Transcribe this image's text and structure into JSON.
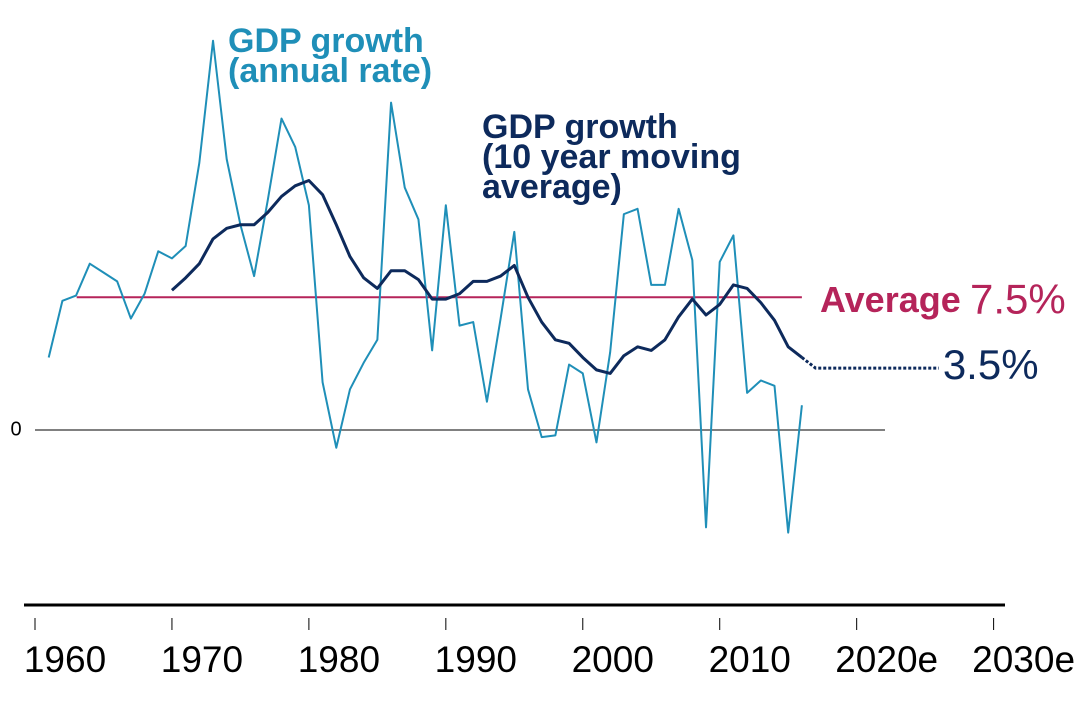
{
  "chart_data": {
    "type": "line",
    "x_annual": [
      1961,
      1962,
      1963,
      1964,
      1965,
      1966,
      1967,
      1968,
      1969,
      1970,
      1971,
      1972,
      1973,
      1974,
      1975,
      1976,
      1977,
      1978,
      1979,
      1980,
      1981,
      1982,
      1983,
      1984,
      1985,
      1986,
      1987,
      1988,
      1989,
      1990,
      1991,
      1992,
      1993,
      1994,
      1995,
      1996,
      1997,
      1998,
      1999,
      2000,
      2001,
      2002,
      2003,
      2004,
      2005,
      2006,
      2007,
      2008,
      2009,
      2010,
      2011,
      2012,
      2013,
      2014,
      2015,
      2016
    ],
    "x_moving": [
      1970,
      1971,
      1972,
      1973,
      1974,
      1975,
      1976,
      1977,
      1978,
      1979,
      1980,
      1981,
      1982,
      1983,
      1984,
      1985,
      1986,
      1987,
      1988,
      1989,
      1990,
      1991,
      1992,
      1993,
      1994,
      1995,
      1996,
      1997,
      1998,
      1999,
      2000,
      2001,
      2002,
      2003,
      2004,
      2005,
      2006,
      2007,
      2008,
      2009,
      2010,
      2011,
      2012,
      2013,
      2014,
      2015,
      2016
    ],
    "series": [
      {
        "name": "GDP growth\n(annual rate)",
        "color": "#1f8fb8",
        "values": [
          4.1,
          7.3,
          7.6,
          9.4,
          8.9,
          8.4,
          6.3,
          7.7,
          10.1,
          9.7,
          10.4,
          15.1,
          22.0,
          15.3,
          11.6,
          8.7,
          13.0,
          17.6,
          16.0,
          12.7,
          2.7,
          -1.0,
          2.3,
          3.8,
          5.1,
          18.5,
          13.7,
          11.9,
          4.5,
          12.7,
          5.9,
          6.1,
          1.6,
          6.3,
          11.2,
          2.3,
          -0.4,
          -0.3,
          3.7,
          3.2,
          -0.7,
          4.4,
          12.2,
          12.5,
          8.2,
          8.2,
          12.5,
          9.6,
          -5.5,
          9.5,
          11.0,
          2.1,
          2.8,
          2.5,
          -5.8,
          1.4
        ]
      },
      {
        "name": "GDP growth\n(10 year moving\naverage)",
        "color": "#0d2a5c",
        "values": [
          7.9,
          8.6,
          9.4,
          10.8,
          11.4,
          11.6,
          11.6,
          12.3,
          13.2,
          13.8,
          14.1,
          13.3,
          11.6,
          9.8,
          8.6,
          8.0,
          9.0,
          9.0,
          8.5,
          7.4,
          7.4,
          7.7,
          8.4,
          8.4,
          8.7,
          9.3,
          7.5,
          6.1,
          5.1,
          4.9,
          4.1,
          3.4,
          3.2,
          4.2,
          4.7,
          4.5,
          5.1,
          6.4,
          7.4,
          6.5,
          7.1,
          8.2,
          8.0,
          7.2,
          6.2,
          4.7,
          4.1
        ]
      }
    ],
    "average": {
      "label": "Average",
      "value": 7.5,
      "value_label": "7.5%",
      "color": "#b5245a"
    },
    "projection": {
      "x": [
        2016,
        2017,
        2026
      ],
      "values": [
        4.1,
        3.5,
        3.5
      ],
      "value_label": "3.5%"
    },
    "xlim": [
      1960,
      2032
    ],
    "xticks": [
      1960,
      1970,
      1980,
      1990,
      2000,
      2010,
      {
        "value": 2020,
        "label": "2020e"
      },
      {
        "value": 2030,
        "label": "2030e"
      }
    ],
    "ylim": [
      -10,
      23
    ],
    "yticks": [
      0
    ]
  }
}
